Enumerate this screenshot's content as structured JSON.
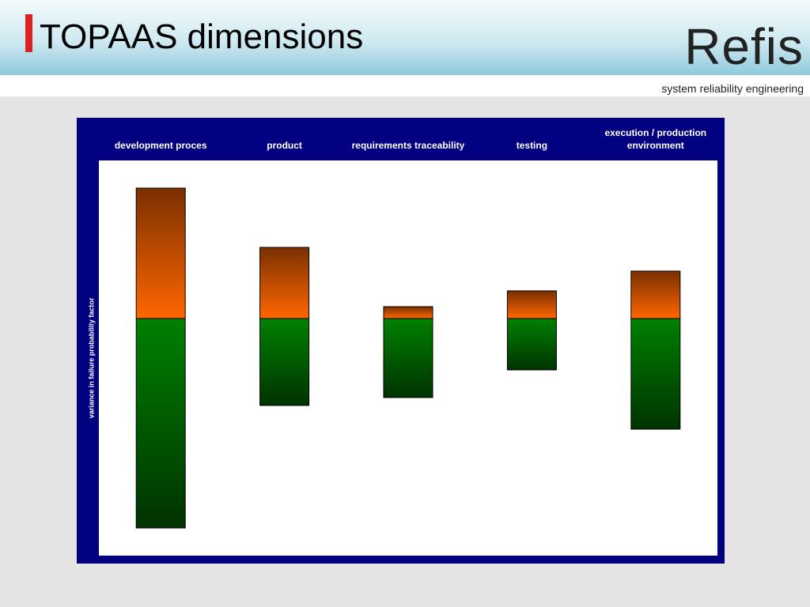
{
  "header": {
    "title": "TOPAAS dimensions",
    "logo": "Refis",
    "tagline": "system reliability engineering"
  },
  "chart_data": {
    "type": "diverging-bar",
    "y_label": "variance in failure probability factor",
    "categories": [
      "development proces",
      "product",
      "requirements traceability",
      "testing",
      "execution / production environment"
    ],
    "series": [
      {
        "color": "#ff6600",
        "values": [
          3.3,
          1.8,
          0.3,
          0.7,
          1.2
        ]
      },
      {
        "color": "#008000",
        "values": [
          -5.3,
          -2.2,
          -2.0,
          -1.3,
          -2.8
        ]
      }
    ],
    "ylim": [
      -6,
      4
    ]
  }
}
